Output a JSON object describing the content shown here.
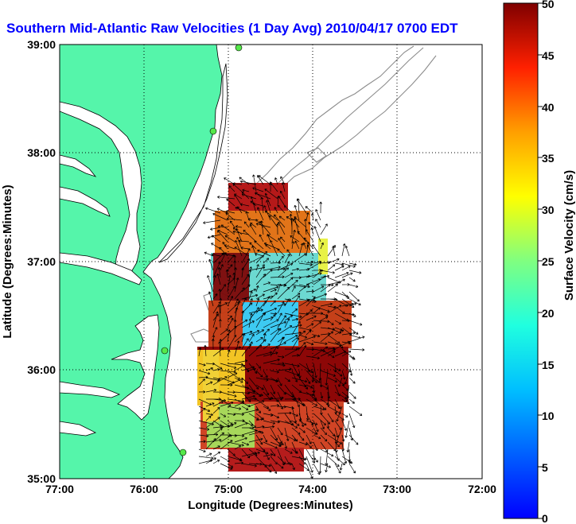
{
  "title": "Southern Mid-Atlantic Raw Velocities (1 Day Avg) 2010/04/17 0700 EDT",
  "map": {
    "xlabel": "Longitude (Degrees:Minutes)",
    "ylabel": "Latitude (Degrees:Minutes)",
    "x_ticks": [
      "77:00",
      "76:00",
      "75:00",
      "74:00",
      "73:00",
      "72:00"
    ],
    "y_ticks": [
      "39:00",
      "38:00",
      "37:00",
      "36:00",
      "35:00"
    ],
    "lon_range": [
      -77,
      -72
    ],
    "lat_range": [
      35,
      39
    ],
    "land_color": "#55f5aa",
    "grid": "dotted"
  },
  "colorbar": {
    "label": "Surface Velocity (cm/s)",
    "ticks": [
      "50",
      "45",
      "40",
      "35",
      "30",
      "25",
      "20",
      "15",
      "10",
      "5",
      "0"
    ],
    "range": [
      0,
      50
    ],
    "colormap": "jet"
  },
  "stations": [
    "station-1",
    "station-2",
    "station-3",
    "station-4"
  ]
}
